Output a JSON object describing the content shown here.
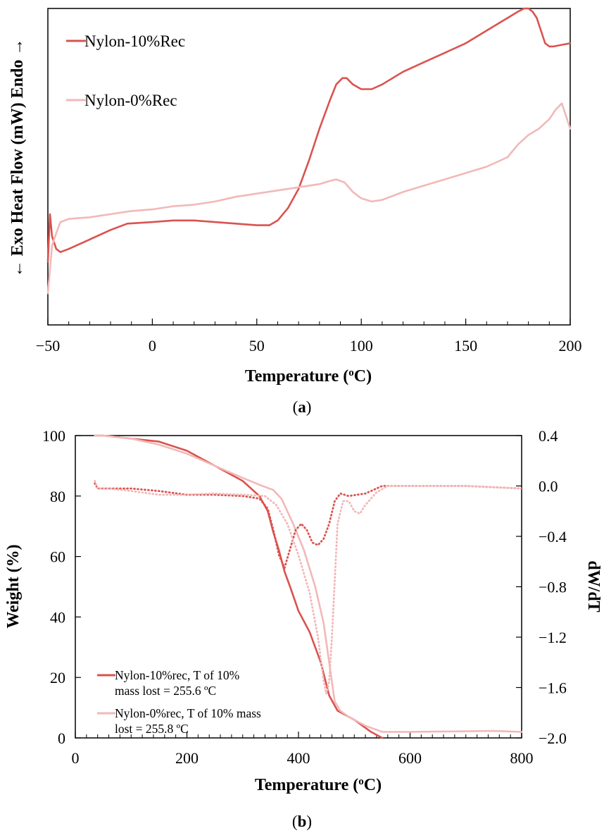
{
  "colors": {
    "nylon10": "#d9534f",
    "nylon0": "#f2b8b8",
    "axis": "#000000"
  },
  "chart_data": [
    {
      "panel": "a",
      "type": "line",
      "panel_label": "a",
      "xlabel": "Temperature (",
      "xlabel_sup": "o",
      "xlabel_end": "C)",
      "ylabel": "← Exo  Heat Flow (mW) Endo →",
      "xlim": [
        -50,
        200
      ],
      "x_ticks": [
        -50,
        0,
        50,
        100,
        150,
        200
      ],
      "x_tick_labels": [
        "−50",
        "0",
        "50",
        "100",
        "150",
        "200"
      ],
      "y_ticks_shown": false,
      "grid": false,
      "legend_position": "top-left",
      "series": [
        {
          "name": "Nylon-10%Rec",
          "color": "#d9534f",
          "x": [
            -50,
            -49,
            -48,
            -46,
            -44,
            -40,
            -30,
            -20,
            -12,
            0,
            10,
            20,
            30,
            40,
            50,
            56,
            60,
            65,
            70,
            75,
            80,
            85,
            88,
            91,
            93,
            96,
            100,
            105,
            110,
            120,
            130,
            140,
            150,
            160,
            170,
            175,
            178,
            180,
            182,
            184,
            186,
            188,
            190,
            192,
            200
          ],
          "y": [
            0.2,
            0.35,
            0.28,
            0.24,
            0.23,
            0.24,
            0.27,
            0.3,
            0.32,
            0.325,
            0.33,
            0.33,
            0.325,
            0.32,
            0.315,
            0.315,
            0.33,
            0.37,
            0.43,
            0.52,
            0.62,
            0.71,
            0.76,
            0.78,
            0.78,
            0.76,
            0.745,
            0.745,
            0.76,
            0.8,
            0.83,
            0.86,
            0.89,
            0.93,
            0.97,
            0.99,
            1.0,
            1.0,
            0.99,
            0.97,
            0.93,
            0.89,
            0.88,
            0.88,
            0.89
          ]
        },
        {
          "name": "Nylon-0%Rec",
          "color": "#f2b8b8",
          "x": [
            -50,
            -48,
            -46,
            -44,
            -40,
            -30,
            -20,
            -10,
            0,
            10,
            20,
            30,
            40,
            50,
            60,
            70,
            80,
            85,
            88,
            92,
            96,
            100,
            105,
            110,
            120,
            130,
            140,
            150,
            160,
            170,
            175,
            180,
            185,
            190,
            193,
            196,
            198,
            200
          ],
          "y": [
            0.1,
            0.25,
            0.29,
            0.325,
            0.335,
            0.34,
            0.35,
            0.36,
            0.365,
            0.375,
            0.38,
            0.39,
            0.405,
            0.415,
            0.425,
            0.435,
            0.445,
            0.455,
            0.46,
            0.45,
            0.42,
            0.4,
            0.39,
            0.395,
            0.42,
            0.44,
            0.46,
            0.48,
            0.5,
            0.53,
            0.57,
            0.6,
            0.62,
            0.65,
            0.68,
            0.7,
            0.66,
            0.62
          ]
        }
      ]
    },
    {
      "panel": "b",
      "type": "line",
      "panel_label": "b",
      "xlabel": "Temperature (",
      "xlabel_sup": "o",
      "xlabel_end": "C)",
      "ylabel": "Weight (%)",
      "y2label": "dW/dT",
      "xlim": [
        0,
        800
      ],
      "ylim": [
        0,
        100
      ],
      "y2lim": [
        -2.0,
        0.4
      ],
      "x_ticks": [
        0,
        200,
        400,
        600,
        800
      ],
      "y_ticks": [
        0,
        20,
        40,
        60,
        80,
        100
      ],
      "y2_ticks": [
        -2.0,
        -1.6,
        -1.2,
        -0.8,
        -0.4,
        0.0,
        0.4
      ],
      "y2_tick_labels": [
        "−2.0",
        "−1.6",
        "−1.2",
        "−0.8",
        "−0.4",
        "0.0",
        "0.4"
      ],
      "grid": false,
      "legend_position": "bottom-left",
      "legend": [
        {
          "line1": "Nylon-10%rec, T of 10%",
          "line2": "mass lost = 255.6 ºC",
          "color": "#d9534f"
        },
        {
          "line1": "Nylon-0%rec, T of 10% mass",
          "line2": "lost = 255.8 ºC",
          "color": "#f2b8b8"
        }
      ],
      "series": [
        {
          "name": "Nylon-10%rec weight",
          "color": "#d9534f",
          "style": "solid",
          "axis": "left",
          "x": [
            35,
            50,
            100,
            150,
            200,
            250,
            300,
            330,
            345,
            355,
            365,
            375,
            385,
            400,
            420,
            440,
            455,
            470,
            500,
            530,
            550
          ],
          "y": [
            100,
            100,
            99,
            98,
            95,
            90,
            85,
            80,
            75,
            68,
            62,
            55,
            50,
            42,
            35,
            25,
            14,
            9,
            6,
            2,
            0
          ]
        },
        {
          "name": "Nylon-0%rec weight",
          "color": "#f2b8b8",
          "style": "solid",
          "axis": "left",
          "x": [
            35,
            50,
            100,
            150,
            200,
            250,
            300,
            340,
            355,
            370,
            390,
            410,
            430,
            445,
            455,
            465,
            475,
            490,
            520,
            550,
            600,
            700,
            750,
            800
          ],
          "y": [
            100,
            100,
            99,
            97,
            94,
            90,
            86,
            83,
            82,
            79,
            71,
            62,
            50,
            38,
            25,
            12,
            9,
            7,
            4,
            2,
            2,
            2.2,
            2.3,
            2
          ]
        },
        {
          "name": "Nylon-10%rec dW/dT",
          "color": "#d9534f",
          "style": "dotted",
          "axis": "right",
          "x": [
            35,
            40,
            60,
            100,
            150,
            200,
            250,
            300,
            330,
            345,
            355,
            365,
            375,
            385,
            395,
            405,
            415,
            425,
            435,
            445,
            455,
            465,
            475,
            490,
            520,
            550,
            600,
            700,
            800
          ],
          "y": [
            0.02,
            -0.02,
            -0.02,
            -0.02,
            -0.04,
            -0.07,
            -0.07,
            -0.08,
            -0.1,
            -0.18,
            -0.35,
            -0.55,
            -0.65,
            -0.5,
            -0.35,
            -0.3,
            -0.35,
            -0.45,
            -0.47,
            -0.42,
            -0.3,
            -0.12,
            -0.06,
            -0.08,
            -0.06,
            0.0,
            0.0,
            0.0,
            -0.02
          ]
        },
        {
          "name": "Nylon-0%rec dW/dT",
          "color": "#f2b8b8",
          "style": "dotted",
          "axis": "right",
          "x": [
            35,
            40,
            60,
            100,
            150,
            200,
            250,
            300,
            340,
            360,
            380,
            400,
            420,
            435,
            445,
            450,
            455,
            460,
            465,
            470,
            480,
            490,
            500,
            510,
            520,
            540,
            560,
            600,
            700,
            800
          ],
          "y": [
            0.04,
            -0.02,
            -0.02,
            -0.04,
            -0.07,
            -0.07,
            -0.06,
            -0.07,
            -0.08,
            -0.15,
            -0.3,
            -0.55,
            -0.85,
            -1.2,
            -1.55,
            -1.65,
            -1.55,
            -1.2,
            -0.75,
            -0.3,
            -0.12,
            -0.12,
            -0.2,
            -0.22,
            -0.15,
            -0.05,
            0.0,
            0.0,
            0.0,
            -0.02
          ]
        }
      ]
    }
  ]
}
